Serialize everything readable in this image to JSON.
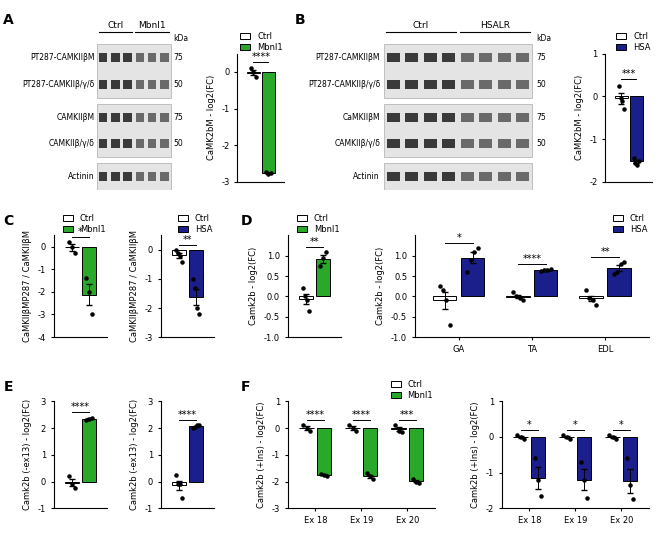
{
  "panel_labels": [
    "A",
    "B",
    "C",
    "D",
    "E",
    "F"
  ],
  "blots": [
    {
      "groups": [
        {
          "name": "Ctrl",
          "lanes": 3
        },
        {
          "name": "Mbnl1",
          "lanes": 3
        }
      ],
      "marker_unit": "kDa",
      "sections": [
        [
          {
            "label": "PT287-CAMKIIβM",
            "marker": 75
          },
          {
            "label": "PT287-CAMKIIβ/γ/δ",
            "marker": 50
          }
        ],
        [
          {
            "label": "CAMKIIβM",
            "marker": 75
          },
          {
            "label": "CAMKIIβ/γ/δ",
            "marker": 50
          }
        ],
        [
          {
            "label": "Actinin",
            "marker": null
          }
        ]
      ]
    },
    {
      "groups": [
        {
          "name": "Ctrl",
          "lanes": 4
        },
        {
          "name": "HSALR",
          "lanes": 4
        }
      ],
      "marker_unit": "kDa",
      "sections": [
        [
          {
            "label": "PT287-CAMKIIβM",
            "marker": 75
          },
          {
            "label": "PT287-CAMKIIβ/γ/δ",
            "marker": 50
          }
        ],
        [
          {
            "label": "CaMKIIβM",
            "marker": 75
          },
          {
            "label": "CAMKIIβ/γ/δ",
            "marker": 50
          }
        ],
        [
          {
            "label": "Actinin",
            "marker": null
          }
        ]
      ]
    }
  ],
  "chart_data": [
    {
      "type": "bar",
      "y_label": "CaMK2bM - log2(FC)",
      "categories": [
        null
      ],
      "series": [
        {
          "name": "Ctrl",
          "color": "#ffffff",
          "values": [
            -0.02
          ],
          "errors": [
            0.07
          ],
          "points": [
            [
              0.1,
              0.0,
              -0.15
            ]
          ]
        },
        {
          "name": "Mbnl1",
          "color": "#2aa82a",
          "values": [
            -2.75
          ],
          "errors": [
            0.02
          ],
          "points": [
            [
              -2.72,
              -2.78,
              -2.75
            ]
          ]
        }
      ],
      "annotations": [
        "****"
      ],
      "ylim": [
        -3,
        0.5
      ],
      "yticks": [
        -3,
        -2,
        -1,
        0
      ],
      "legend": "upper right"
    },
    {
      "type": "bar",
      "y_label": "CaMK2bM - log2(FC)",
      "categories": [
        null
      ],
      "series": [
        {
          "name": "Ctrl",
          "color": "#ffffff",
          "values": [
            -0.05
          ],
          "errors": [
            0.12
          ],
          "points": [
            [
              0.25,
              -0.05,
              -0.1,
              -0.3
            ]
          ]
        },
        {
          "name": "HSA",
          "color": "#1a1f8c",
          "values": [
            -1.52
          ],
          "errors": [
            0.03
          ],
          "points": [
            [
              -1.45,
              -1.55,
              -1.6,
              -1.5
            ]
          ]
        }
      ],
      "annotations": [
        "***"
      ],
      "ylim": [
        -2,
        1
      ],
      "yticks": [
        -2,
        -1,
        0,
        1
      ],
      "legend": "upper right"
    },
    {
      "type": "bar",
      "y_label": "CaMKIIβMP287 / CaMKIIβM",
      "categories": [
        null
      ],
      "series": [
        {
          "name": "Ctrl",
          "color": "#ffffff",
          "values": [
            -0.03
          ],
          "errors": [
            0.15
          ],
          "points": [
            [
              0.2,
              0.0,
              -0.3
            ]
          ]
        },
        {
          "name": "Mbnl1",
          "color": "#2aa82a",
          "values": [
            -2.13
          ],
          "errors": [
            0.47
          ],
          "points": [
            [
              -1.4,
              -2.0,
              -3.0
            ]
          ]
        }
      ],
      "annotations": [
        "*"
      ],
      "ylim": [
        -4,
        0.5
      ],
      "yticks": [
        -4,
        -3,
        -2,
        -1,
        0
      ],
      "legend": "upper right"
    },
    {
      "type": "bar",
      "y_label": "CaMKIIβMP287 / CaMKIIβM",
      "categories": [
        null
      ],
      "series": [
        {
          "name": "Ctrl",
          "color": "#ffffff",
          "values": [
            -0.18
          ],
          "errors": [
            0.09
          ],
          "points": [
            [
              0.0,
              -0.1,
              -0.2,
              -0.4
            ]
          ]
        },
        {
          "name": "HSA",
          "color": "#1a1f8c",
          "values": [
            -1.63
          ],
          "errors": [
            0.28
          ],
          "points": [
            [
              -1.0,
              -1.3,
              -2.0,
              -2.2
            ]
          ]
        }
      ],
      "annotations": [
        "**"
      ],
      "ylim": [
        -3,
        0.5
      ],
      "yticks": [
        -3,
        -2,
        -1,
        0
      ],
      "legend": "upper right"
    },
    {
      "type": "bar",
      "y_label": "Camk2b - log2(FC)",
      "categories": [
        null
      ],
      "series": [
        {
          "name": "Ctrl",
          "color": "#ffffff",
          "values": [
            -0.06
          ],
          "errors": [
            0.12
          ],
          "points": [
            [
              0.2,
              0.0,
              -0.1,
              -0.35
            ]
          ]
        },
        {
          "name": "Mbnl1",
          "color": "#2aa82a",
          "values": [
            0.93
          ],
          "errors": [
            0.1
          ],
          "points": [
            [
              0.75,
              0.95,
              1.1
            ]
          ]
        }
      ],
      "annotations": [
        "**"
      ],
      "ylim": [
        -1,
        1.5
      ],
      "yticks": [
        -1.0,
        -0.5,
        0.0,
        0.5,
        1.0
      ],
      "legend": "upper right"
    },
    {
      "type": "bar",
      "y_label": "Camk2b - log2(FC)",
      "categories": [
        "GA",
        "TA",
        "EDL"
      ],
      "series": [
        {
          "name": "Ctrl",
          "color": "#ffffff",
          "values": [
            -0.1,
            -0.01,
            -0.05
          ],
          "errors": [
            0.22,
            0.04,
            0.07
          ],
          "points": [
            [
              0.25,
              0.15,
              -0.1,
              -0.7
            ],
            [
              0.1,
              0.0,
              -0.05,
              -0.1
            ],
            [
              0.15,
              -0.05,
              -0.1,
              -0.2
            ]
          ]
        },
        {
          "name": "HSA",
          "color": "#1a1f8c",
          "values": [
            0.95,
            0.65,
            0.7
          ],
          "errors": [
            0.13,
            0.02,
            0.07
          ],
          "points": [
            [
              0.6,
              0.9,
              1.1,
              1.2
            ],
            [
              0.62,
              0.64,
              0.66,
              0.68
            ],
            [
              0.55,
              0.6,
              0.8,
              0.85
            ]
          ]
        }
      ],
      "annotations": [
        "*",
        "****",
        "**"
      ],
      "ylim": [
        -1,
        1.5
      ],
      "yticks": [
        -1.0,
        -0.5,
        0.0,
        0.5,
        1.0
      ],
      "legend": "upper right"
    },
    {
      "type": "bar",
      "y_label": "Camk2b (-ex13) - log2(FC)",
      "categories": [
        null
      ],
      "series": [
        {
          "name": "Ctrl",
          "color": "#ffffff",
          "values": [
            -0.05
          ],
          "errors": [
            0.13
          ],
          "points": [
            [
              0.2,
              -0.1,
              -0.25
            ]
          ]
        },
        {
          "name": "Mbnl1",
          "color": "#2aa82a",
          "values": [
            2.34
          ],
          "errors": [
            0.02
          ],
          "points": [
            [
              2.3,
              2.35,
              2.38
            ]
          ]
        }
      ],
      "annotations": [
        "****"
      ],
      "ylim": [
        -1,
        3
      ],
      "yticks": [
        -1,
        0,
        1,
        2,
        3
      ]
    },
    {
      "type": "bar",
      "y_label": "Camk2b (-ex13) - log2(FC)",
      "categories": [
        null
      ],
      "series": [
        {
          "name": "Ctrl",
          "color": "#ffffff",
          "values": [
            -0.14
          ],
          "errors": [
            0.17
          ],
          "points": [
            [
              0.25,
              -0.1,
              -0.1,
              -0.6
            ]
          ]
        },
        {
          "name": "HSA",
          "color": "#1a1f8c",
          "values": [
            2.06
          ],
          "errors": [
            0.03
          ],
          "points": [
            [
              2.0,
              2.05,
              2.1,
              2.1
            ]
          ]
        }
      ],
      "annotations": [
        "****"
      ],
      "ylim": [
        -1,
        3
      ],
      "yticks": [
        -1,
        0,
        1,
        2,
        3
      ]
    },
    {
      "type": "bar",
      "y_label": "Camk2b (+Ins) - log2(FC)",
      "categories": [
        "Ex 18",
        "Ex 19",
        "Ex 20"
      ],
      "series": [
        {
          "name": "Ctrl",
          "color": "#ffffff",
          "values": [
            0.0,
            0.0,
            -0.05
          ],
          "errors": [
            0.06,
            0.06,
            0.08
          ],
          "points": [
            [
              0.1,
              0.0,
              -0.1
            ],
            [
              0.1,
              0.0,
              -0.1
            ],
            [
              0.1,
              -0.1,
              -0.15
            ]
          ]
        },
        {
          "name": "Mbnl1",
          "color": "#2aa82a",
          "values": [
            -1.75,
            -1.8,
            -1.98
          ],
          "errors": [
            0.02,
            0.06,
            0.05
          ],
          "points": [
            [
              -1.72,
              -1.75,
              -1.78
            ],
            [
              -1.7,
              -1.8,
              -1.9
            ],
            [
              -1.9,
              -2.0,
              -2.05
            ]
          ]
        }
      ],
      "annotations": [
        "****",
        "****",
        "***"
      ],
      "ylim": [
        -3,
        1
      ],
      "yticks": [
        -3,
        -2,
        -1,
        0,
        1
      ],
      "legend": "upper right"
    },
    {
      "type": "bar",
      "y_label": "Camk2b (+Ins) - log2(FC)",
      "categories": [
        "Ex 18",
        "Ex 19",
        "Ex 20"
      ],
      "series": [
        {
          "name": "Ctrl",
          "color": "#ffffff",
          "values": [
            0.0,
            0.0,
            0.0
          ],
          "errors": [
            0.03,
            0.03,
            0.03
          ],
          "points": [
            [
              0.05,
              0.0,
              -0.05
            ],
            [
              0.05,
              0.0,
              -0.05
            ],
            [
              0.05,
              0.0,
              -0.05
            ]
          ]
        },
        {
          "name": "HSA",
          "color": "#1a1f8c",
          "values": [
            -1.15,
            -1.2,
            -1.23
          ],
          "errors": [
            0.3,
            0.29,
            0.34
          ],
          "points": [
            [
              -0.6,
              -1.2,
              -1.65
            ],
            [
              -0.7,
              -1.2,
              -1.7
            ],
            [
              -0.6,
              -1.35,
              -1.75
            ]
          ]
        }
      ],
      "annotations": [
        "*",
        "*",
        "*"
      ],
      "ylim": [
        -2,
        1
      ],
      "yticks": [
        -2,
        -1,
        0,
        1
      ]
    }
  ]
}
